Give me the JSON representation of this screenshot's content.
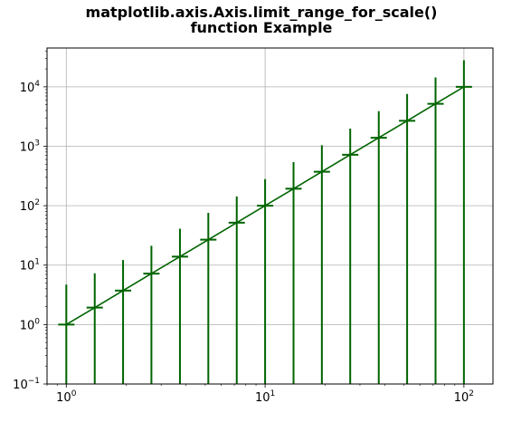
{
  "chart_data": {
    "type": "line",
    "title_lines": [
      "matplotlib.axis.Axis.limit_range_for_scale()",
      "function Example"
    ],
    "xlabel": "",
    "ylabel": "",
    "xscale": "log",
    "yscale": "log",
    "xlim": [
      0.8,
      140
    ],
    "ylim": [
      0.1,
      45000
    ],
    "grid": true,
    "color": "#006400",
    "x_ticks": [
      {
        "value": 1,
        "base": "10",
        "exp": "0"
      },
      {
        "value": 10,
        "base": "10",
        "exp": "1"
      },
      {
        "value": 100,
        "base": "10",
        "exp": "2"
      }
    ],
    "y_ticks": [
      {
        "value": 0.1,
        "base": "10",
        "exp": "−1"
      },
      {
        "value": 1,
        "base": "10",
        "exp": "0"
      },
      {
        "value": 10,
        "base": "10",
        "exp": "1"
      },
      {
        "value": 100,
        "base": "10",
        "exp": "2"
      },
      {
        "value": 1000,
        "base": "10",
        "exp": "3"
      },
      {
        "value": 10000,
        "base": "10",
        "exp": "4"
      }
    ],
    "series": [
      {
        "x": [
          1.0,
          1.39,
          1.93,
          2.68,
          3.73,
          5.18,
          7.2,
          10.0,
          13.9,
          19.3,
          26.8,
          37.3,
          51.8,
          72.0,
          100.0
        ],
        "y": [
          1.0,
          1.93,
          3.73,
          7.2,
          13.9,
          26.8,
          51.8,
          100.0,
          193,
          373,
          720,
          1390,
          2680,
          5180,
          10000
        ],
        "yerr_upper": [
          4.7,
          7.3,
          12.2,
          21.2,
          41,
          76,
          143,
          280,
          540,
          1040,
          1980,
          3900,
          7600,
          14400,
          28000
        ],
        "yerr_lower": [
          0.1,
          0.1,
          0.1,
          0.1,
          0.1,
          0.1,
          0.1,
          0.1,
          0.1,
          0.1,
          0.1,
          0.1,
          0.1,
          0.1,
          0.1
        ]
      }
    ]
  }
}
